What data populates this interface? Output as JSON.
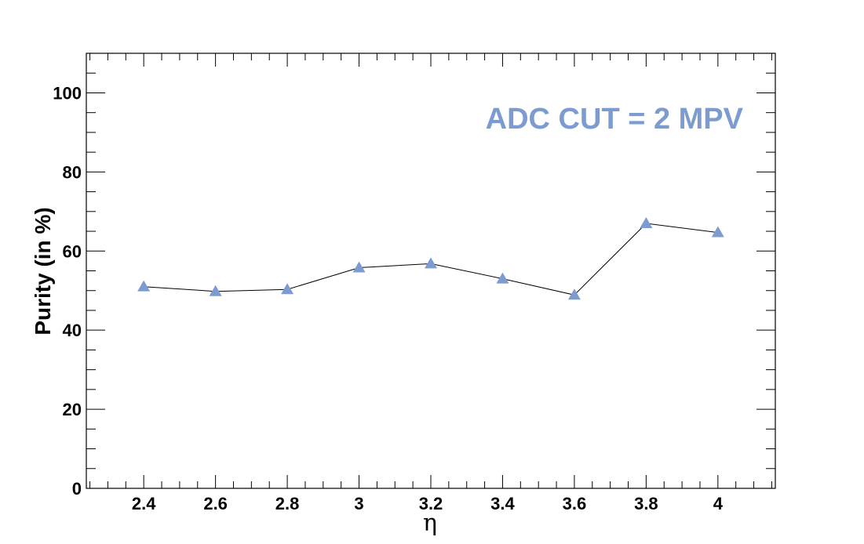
{
  "chart_data": {
    "type": "line",
    "title": "",
    "xlabel": "η",
    "ylabel": "Purity (in %)",
    "annotation": "ADC CUT = 2 MPV",
    "xlim": [
      2.24,
      4.16
    ],
    "ylim": [
      0,
      110
    ],
    "x_ticks": [
      "2.4",
      "2.6",
      "2.8",
      "3",
      "3.2",
      "3.4",
      "3.6",
      "3.8",
      "4"
    ],
    "y_ticks": [
      "0",
      "20",
      "40",
      "60",
      "80",
      "100"
    ],
    "grid": false,
    "legend": "none",
    "series": [
      {
        "x": [
          2.4,
          2.6,
          2.8,
          3.0,
          3.2,
          3.4,
          3.6,
          3.8,
          4.0
        ],
        "y": [
          51.0,
          49.8,
          50.3,
          55.8,
          56.8,
          53.0,
          48.9,
          67.0,
          64.7
        ],
        "marker": "triangle-up",
        "marker_color": "#7b9bd1",
        "line_color": "#000000"
      }
    ],
    "colors": {
      "annotation": "#7b9bd1",
      "axis": "#000000"
    }
  }
}
